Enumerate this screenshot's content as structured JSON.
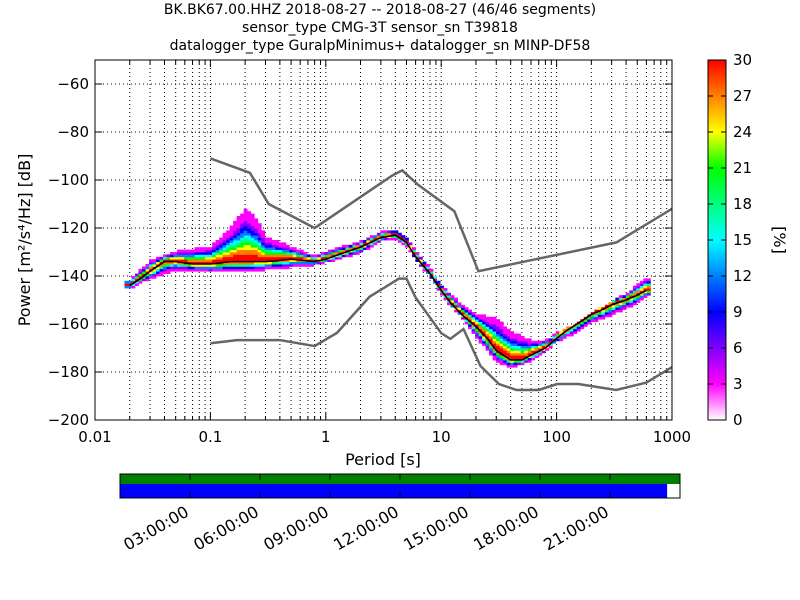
{
  "header": {
    "line1": "BK.BK67.00.HHZ   2018-08-27 -- 2018-08-27  (46/46 segments)",
    "line2": "sensor_type CMG-3T sensor_sn T39818",
    "line3": "datalogger_type GuralpMinimus+ datalogger_sn MINP-DF58"
  },
  "chart_data": [
    {
      "type": "heatmap",
      "xlabel": "Period [s]",
      "ylabel": "Power [m²/s⁴/Hz] [dB]",
      "xscale": "log",
      "xlim": [
        0.01,
        1000
      ],
      "ylim": [
        -200,
        -50
      ],
      "x_ticks": [
        0.01,
        0.1,
        1,
        10,
        100,
        1000
      ],
      "x_tick_labels": [
        "0.01",
        "0.1",
        "1",
        "10",
        "100",
        "1000"
      ],
      "y_ticks": [
        -200,
        -180,
        -160,
        -140,
        -120,
        -100,
        -80,
        -60
      ],
      "y_tick_labels": [
        "−200",
        "−180",
        "−160",
        "−140",
        "−120",
        "−100",
        "−80",
        "−60"
      ],
      "grid": true,
      "colorbar": {
        "label": "[%]",
        "min": 0,
        "max": 30,
        "ticks": [
          0,
          3,
          6,
          9,
          12,
          15,
          18,
          21,
          24,
          27,
          30
        ],
        "colors": [
          "#ffffff",
          "#ff00ff",
          "#8000ff",
          "#0000ff",
          "#0080ff",
          "#00ffff",
          "#00ff80",
          "#00ff00",
          "#ffff00",
          "#ff8000",
          "#ff0000"
        ]
      },
      "noise_model_high": {
        "periods": [
          0.1,
          0.22,
          0.32,
          0.8,
          3.8,
          4.6,
          6.3,
          13,
          21,
          330,
          1000
        ],
        "power": [
          -91,
          -97,
          -110,
          -120,
          -98,
          -96,
          -102,
          -113,
          -138,
          -126,
          -112
        ]
      },
      "noise_model_low": {
        "periods": [
          0.1,
          0.17,
          0.4,
          0.8,
          1.25,
          2.4,
          4.3,
          5,
          6,
          10,
          12,
          15.6,
          21.9,
          31.6,
          45,
          70,
          101,
          154,
          328,
          600,
          1000
        ],
        "power": [
          -168,
          -166.7,
          -166.7,
          -169.2,
          -163.7,
          -148.6,
          -141.1,
          -141.1,
          -149,
          -163.8,
          -166.2,
          -162.1,
          -177.5,
          -185,
          -187.5,
          -187.5,
          -185,
          -185,
          -187.5,
          -184.4,
          -178
        ]
      },
      "mode_curve": {
        "periods": [
          0.02,
          0.025,
          0.03,
          0.04,
          0.05,
          0.07,
          0.1,
          0.15,
          0.2,
          0.3,
          0.5,
          0.8,
          1,
          1.5,
          2,
          3,
          4,
          5,
          6,
          8,
          10,
          12,
          15,
          20,
          25,
          30,
          40,
          50,
          60,
          80,
          100,
          120,
          150,
          200,
          250,
          300,
          400,
          500,
          600
        ],
        "power": [
          -144,
          -141,
          -138,
          -134,
          -134,
          -135,
          -135,
          -134,
          -134,
          -134,
          -133,
          -134,
          -133,
          -130,
          -128,
          -124,
          -123,
          -126,
          -132,
          -139,
          -146,
          -151,
          -156,
          -161,
          -166,
          -171,
          -175,
          -175,
          -173,
          -170,
          -166,
          -163,
          -160,
          -156,
          -154,
          -152,
          -150,
          -148,
          -146
        ]
      },
      "upper_spread": {
        "periods": [
          0.02,
          0.03,
          0.05,
          0.1,
          0.15,
          0.2,
          0.25,
          0.3,
          0.5,
          0.8,
          1,
          2,
          3,
          4,
          5,
          6,
          8,
          10,
          15,
          20,
          30,
          40,
          60,
          80,
          100,
          150,
          200,
          300,
          400,
          500,
          600
        ],
        "power": [
          -142,
          -134,
          -130,
          -128,
          -120,
          -112,
          -116,
          -124,
          -128,
          -132,
          -130,
          -126,
          -122,
          -122,
          -125,
          -131,
          -137,
          -144,
          -152,
          -156,
          -158,
          -163,
          -167,
          -167,
          -165,
          -161,
          -157,
          -152,
          -148,
          -144,
          -141
        ]
      },
      "lower_spread": {
        "periods": [
          0.02,
          0.03,
          0.05,
          0.1,
          0.2,
          0.3,
          0.5,
          0.8,
          1,
          2,
          3,
          4,
          5,
          6,
          8,
          10,
          15,
          20,
          30,
          40,
          60,
          80,
          100,
          150,
          200,
          300,
          400,
          500,
          600
        ],
        "power": [
          -145,
          -142,
          -138,
          -139,
          -139,
          -138,
          -137,
          -136,
          -135,
          -131,
          -126,
          -125,
          -128,
          -134,
          -141,
          -148,
          -158,
          -166,
          -176,
          -179,
          -176,
          -172,
          -168,
          -164,
          -160,
          -157,
          -154,
          -152,
          -149
        ]
      }
    },
    {
      "type": "timeline",
      "x_tick_labels": [
        "03:00:00",
        "06:00:00",
        "09:00:00",
        "12:00:00",
        "15:00:00",
        "18:00:00",
        "21:00:00"
      ],
      "x_tick_hours": [
        3,
        6,
        9,
        12,
        15,
        18,
        21
      ],
      "data_coverage_fraction": 1.0,
      "psd_coverage_fraction": 0.977,
      "colors": {
        "data": "#008000",
        "psd": "#0000ff"
      }
    }
  ],
  "colors": {
    "noise_model": "#666666",
    "mode_line": "#000000",
    "grid": "#000000"
  }
}
